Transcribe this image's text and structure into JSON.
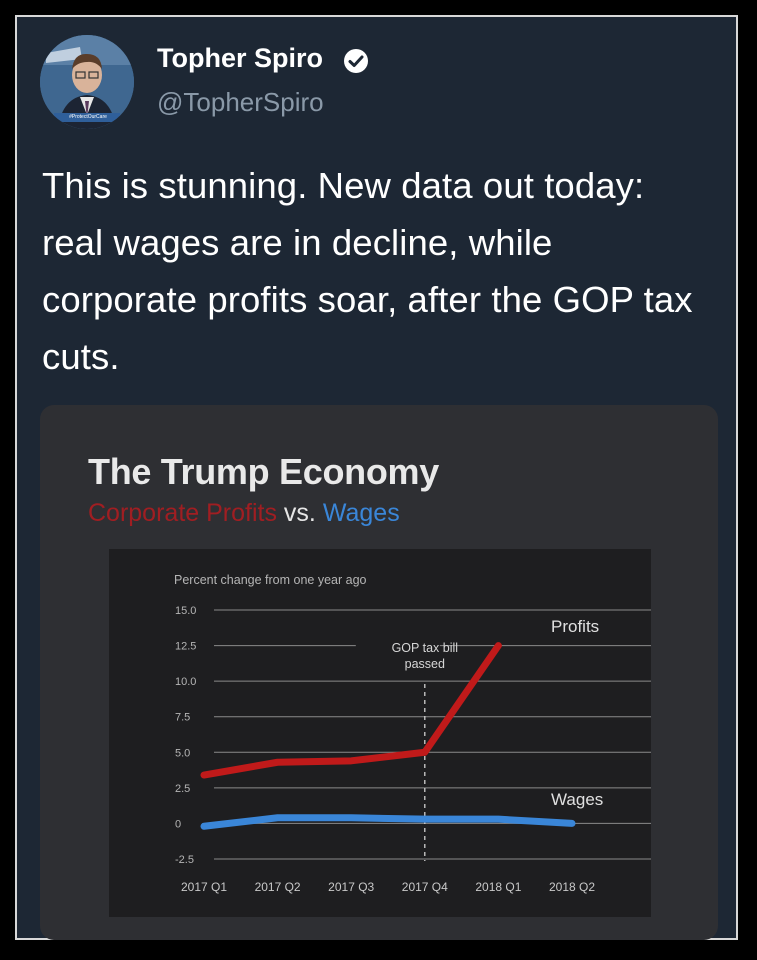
{
  "tweet": {
    "author_name": "Topher Spiro",
    "handle": "@TopherSpiro",
    "avatar_caption": "#ProtectOurCare",
    "text": "This is stunning. New data out today: real wages are in decline, while corporate profits soar, after the GOP tax cuts."
  },
  "colors": {
    "background": "#1d2734",
    "profits": "#c01a1a",
    "wages": "#3a86d8"
  },
  "chart_data": {
    "type": "line",
    "title": "The Trump Economy",
    "subtitle_parts": [
      "Corporate Profits",
      " vs. ",
      "Wages"
    ],
    "ylabel": "Percent change from one year ago",
    "ylim": [
      -2.5,
      15.0
    ],
    "y_ticks": [
      "15.0",
      "12.5",
      "10.0",
      "7.5",
      "5.0",
      "2.5",
      "0",
      "-2.5"
    ],
    "x_categories": [
      "2017 Q1",
      "2017 Q2",
      "2017 Q3",
      "2017 Q4",
      "2018 Q1",
      "2018 Q2"
    ],
    "grid": true,
    "annotation": {
      "text_lines": [
        "GOP tax bill",
        "passed"
      ],
      "at": "2017 Q4"
    },
    "series": [
      {
        "name": "Profits",
        "color": "#c01a1a",
        "x": [
          0,
          1,
          2,
          3,
          4
        ],
        "values": [
          3.4,
          4.3,
          4.4,
          5.0,
          12.5
        ]
      },
      {
        "name": "Wages",
        "color": "#3a86d8",
        "x": [
          0,
          1,
          2,
          3,
          4,
          5
        ],
        "values": [
          -0.2,
          0.4,
          0.4,
          0.3,
          0.3,
          0.0
        ]
      }
    ]
  }
}
